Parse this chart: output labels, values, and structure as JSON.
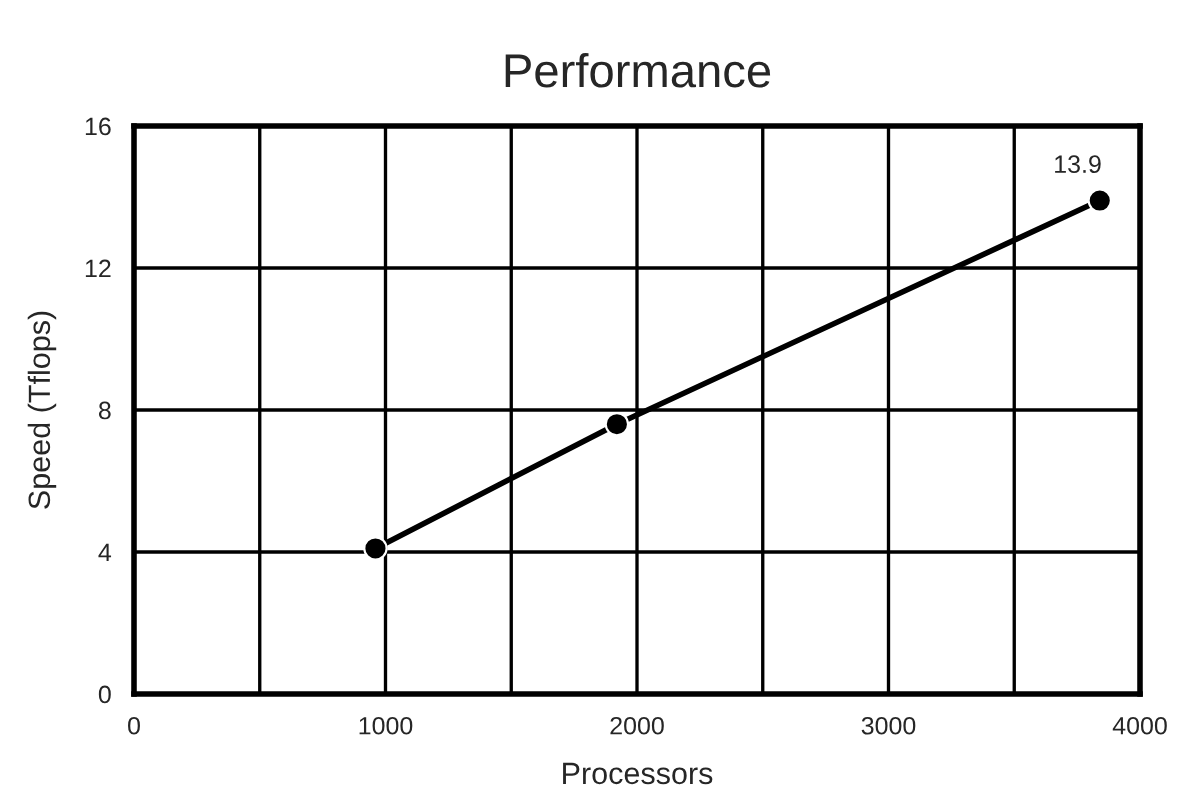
{
  "chart_data": {
    "type": "line",
    "title": "Performance",
    "xlabel": "Processors",
    "ylabel": "Speed (Tflops)",
    "x": [
      960,
      1920,
      3840
    ],
    "series": [
      {
        "color": "#000000",
        "values": [
          4.1,
          7.6,
          13.9
        ],
        "value_labels": [
          null,
          null,
          "13.9"
        ]
      }
    ],
    "xlim": [
      0,
      4000
    ],
    "xticks": [
      0,
      {
        "value": 500,
        "label": null
      },
      1000,
      {
        "value": 1500,
        "label": null
      },
      2000,
      {
        "value": 2500,
        "label": null
      },
      3000,
      {
        "value": 3500,
        "label": null
      },
      4000
    ],
    "ylim": [
      0,
      16
    ],
    "yticks": [
      0,
      4,
      8,
      12,
      16
    ],
    "grid": true,
    "marker": "circle",
    "line_style": "solid"
  }
}
